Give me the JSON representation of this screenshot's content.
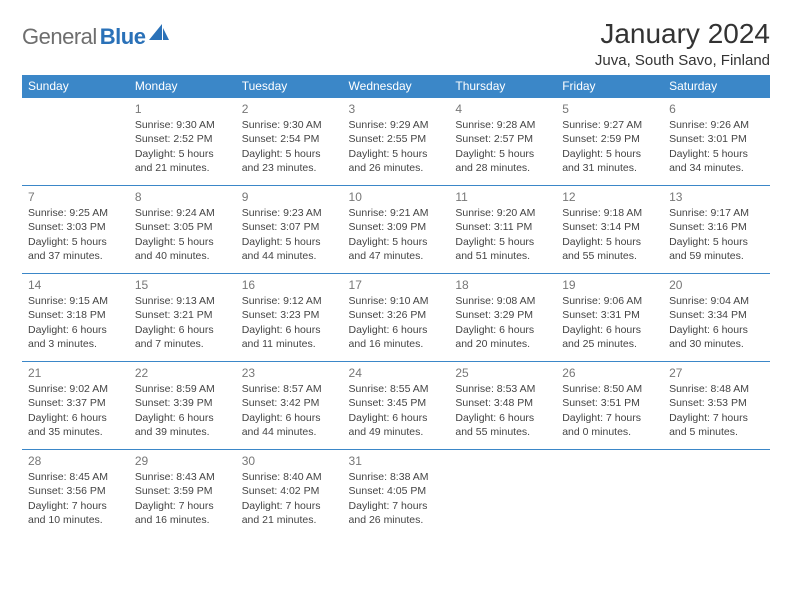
{
  "logo": {
    "word1": "General",
    "word2": "Blue"
  },
  "title": "January 2024",
  "location": "Juva, South Savo, Finland",
  "colors": {
    "header_bg": "#3b87c8",
    "header_text": "#ffffff",
    "border": "#3b87c8",
    "logo_gray": "#6e6e6e",
    "logo_blue": "#2a71b8",
    "body_text": "#444444",
    "daynum": "#777777",
    "background": "#ffffff"
  },
  "day_headers": [
    "Sunday",
    "Monday",
    "Tuesday",
    "Wednesday",
    "Thursday",
    "Friday",
    "Saturday"
  ],
  "weeks": [
    [
      null,
      {
        "n": "1",
        "sr": "Sunrise: 9:30 AM",
        "ss": "Sunset: 2:52 PM",
        "dl": "Daylight: 5 hours and 21 minutes."
      },
      {
        "n": "2",
        "sr": "Sunrise: 9:30 AM",
        "ss": "Sunset: 2:54 PM",
        "dl": "Daylight: 5 hours and 23 minutes."
      },
      {
        "n": "3",
        "sr": "Sunrise: 9:29 AM",
        "ss": "Sunset: 2:55 PM",
        "dl": "Daylight: 5 hours and 26 minutes."
      },
      {
        "n": "4",
        "sr": "Sunrise: 9:28 AM",
        "ss": "Sunset: 2:57 PM",
        "dl": "Daylight: 5 hours and 28 minutes."
      },
      {
        "n": "5",
        "sr": "Sunrise: 9:27 AM",
        "ss": "Sunset: 2:59 PM",
        "dl": "Daylight: 5 hours and 31 minutes."
      },
      {
        "n": "6",
        "sr": "Sunrise: 9:26 AM",
        "ss": "Sunset: 3:01 PM",
        "dl": "Daylight: 5 hours and 34 minutes."
      }
    ],
    [
      {
        "n": "7",
        "sr": "Sunrise: 9:25 AM",
        "ss": "Sunset: 3:03 PM",
        "dl": "Daylight: 5 hours and 37 minutes."
      },
      {
        "n": "8",
        "sr": "Sunrise: 9:24 AM",
        "ss": "Sunset: 3:05 PM",
        "dl": "Daylight: 5 hours and 40 minutes."
      },
      {
        "n": "9",
        "sr": "Sunrise: 9:23 AM",
        "ss": "Sunset: 3:07 PM",
        "dl": "Daylight: 5 hours and 44 minutes."
      },
      {
        "n": "10",
        "sr": "Sunrise: 9:21 AM",
        "ss": "Sunset: 3:09 PM",
        "dl": "Daylight: 5 hours and 47 minutes."
      },
      {
        "n": "11",
        "sr": "Sunrise: 9:20 AM",
        "ss": "Sunset: 3:11 PM",
        "dl": "Daylight: 5 hours and 51 minutes."
      },
      {
        "n": "12",
        "sr": "Sunrise: 9:18 AM",
        "ss": "Sunset: 3:14 PM",
        "dl": "Daylight: 5 hours and 55 minutes."
      },
      {
        "n": "13",
        "sr": "Sunrise: 9:17 AM",
        "ss": "Sunset: 3:16 PM",
        "dl": "Daylight: 5 hours and 59 minutes."
      }
    ],
    [
      {
        "n": "14",
        "sr": "Sunrise: 9:15 AM",
        "ss": "Sunset: 3:18 PM",
        "dl": "Daylight: 6 hours and 3 minutes."
      },
      {
        "n": "15",
        "sr": "Sunrise: 9:13 AM",
        "ss": "Sunset: 3:21 PM",
        "dl": "Daylight: 6 hours and 7 minutes."
      },
      {
        "n": "16",
        "sr": "Sunrise: 9:12 AM",
        "ss": "Sunset: 3:23 PM",
        "dl": "Daylight: 6 hours and 11 minutes."
      },
      {
        "n": "17",
        "sr": "Sunrise: 9:10 AM",
        "ss": "Sunset: 3:26 PM",
        "dl": "Daylight: 6 hours and 16 minutes."
      },
      {
        "n": "18",
        "sr": "Sunrise: 9:08 AM",
        "ss": "Sunset: 3:29 PM",
        "dl": "Daylight: 6 hours and 20 minutes."
      },
      {
        "n": "19",
        "sr": "Sunrise: 9:06 AM",
        "ss": "Sunset: 3:31 PM",
        "dl": "Daylight: 6 hours and 25 minutes."
      },
      {
        "n": "20",
        "sr": "Sunrise: 9:04 AM",
        "ss": "Sunset: 3:34 PM",
        "dl": "Daylight: 6 hours and 30 minutes."
      }
    ],
    [
      {
        "n": "21",
        "sr": "Sunrise: 9:02 AM",
        "ss": "Sunset: 3:37 PM",
        "dl": "Daylight: 6 hours and 35 minutes."
      },
      {
        "n": "22",
        "sr": "Sunrise: 8:59 AM",
        "ss": "Sunset: 3:39 PM",
        "dl": "Daylight: 6 hours and 39 minutes."
      },
      {
        "n": "23",
        "sr": "Sunrise: 8:57 AM",
        "ss": "Sunset: 3:42 PM",
        "dl": "Daylight: 6 hours and 44 minutes."
      },
      {
        "n": "24",
        "sr": "Sunrise: 8:55 AM",
        "ss": "Sunset: 3:45 PM",
        "dl": "Daylight: 6 hours and 49 minutes."
      },
      {
        "n": "25",
        "sr": "Sunrise: 8:53 AM",
        "ss": "Sunset: 3:48 PM",
        "dl": "Daylight: 6 hours and 55 minutes."
      },
      {
        "n": "26",
        "sr": "Sunrise: 8:50 AM",
        "ss": "Sunset: 3:51 PM",
        "dl": "Daylight: 7 hours and 0 minutes."
      },
      {
        "n": "27",
        "sr": "Sunrise: 8:48 AM",
        "ss": "Sunset: 3:53 PM",
        "dl": "Daylight: 7 hours and 5 minutes."
      }
    ],
    [
      {
        "n": "28",
        "sr": "Sunrise: 8:45 AM",
        "ss": "Sunset: 3:56 PM",
        "dl": "Daylight: 7 hours and 10 minutes."
      },
      {
        "n": "29",
        "sr": "Sunrise: 8:43 AM",
        "ss": "Sunset: 3:59 PM",
        "dl": "Daylight: 7 hours and 16 minutes."
      },
      {
        "n": "30",
        "sr": "Sunrise: 8:40 AM",
        "ss": "Sunset: 4:02 PM",
        "dl": "Daylight: 7 hours and 21 minutes."
      },
      {
        "n": "31",
        "sr": "Sunrise: 8:38 AM",
        "ss": "Sunset: 4:05 PM",
        "dl": "Daylight: 7 hours and 26 minutes."
      },
      null,
      null,
      null
    ]
  ]
}
